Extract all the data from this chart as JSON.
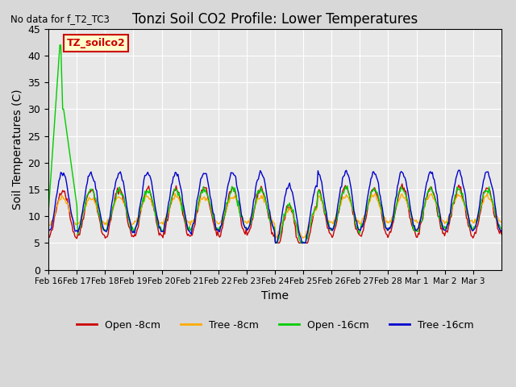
{
  "title": "Tonzi Soil CO2 Profile: Lower Temperatures",
  "subtitle": "No data for f_T2_TC3",
  "ylabel": "Soil Temperatures (C)",
  "xlabel": "Time",
  "ylim": [
    0,
    45
  ],
  "yticks": [
    0,
    5,
    10,
    15,
    20,
    25,
    30,
    35,
    40,
    45
  ],
  "bg_color": "#e0e0e0",
  "plot_bg_color": "#e8e8e8",
  "legend_box_label": "TZ_soilco2",
  "legend_box_color": "#ffffcc",
  "legend_box_border": "#cc0000",
  "colors": {
    "open_8cm": "#cc0000",
    "tree_8cm": "#ffaa00",
    "open_16cm": "#00cc00",
    "tree_16cm": "#0000cc"
  },
  "x_tick_labels": [
    "Feb 16",
    "Feb 17",
    "Feb 18",
    "Feb 19",
    "Feb 20",
    "Feb 21",
    "Feb 22",
    "Feb 23",
    "Feb 24",
    "Feb 25",
    "Feb 26",
    "Feb 27",
    "Feb 28",
    "Mar 1",
    "Mar 2",
    "Mar 3"
  ],
  "n_points": 480
}
